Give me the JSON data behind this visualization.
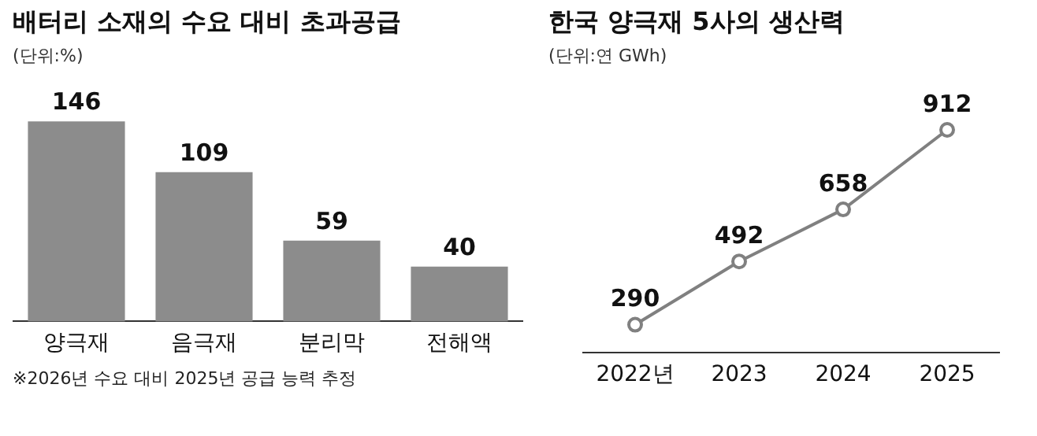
{
  "chart_data": [
    {
      "type": "bar",
      "title": "배터리 소재의 수요 대비 초과공급",
      "subtitle": "(단위:%)",
      "categories": [
        "양극재",
        "음극재",
        "분리막",
        "전해액"
      ],
      "values": [
        146,
        109,
        59,
        40
      ],
      "color": "#8c8c8c",
      "data_labels": true,
      "annotations": [
        "※2026년 수요 대비 2025년 공급 능력 추정"
      ]
    },
    {
      "type": "line",
      "title": "한국 양극재 5사의 생산력",
      "subtitle": "(단위:연 GWh)",
      "categories": [
        "2022년",
        "2023",
        "2024",
        "2025"
      ],
      "values": [
        290,
        492,
        658,
        912
      ],
      "color": "#808080",
      "marker": "circle",
      "data_labels": true
    }
  ]
}
